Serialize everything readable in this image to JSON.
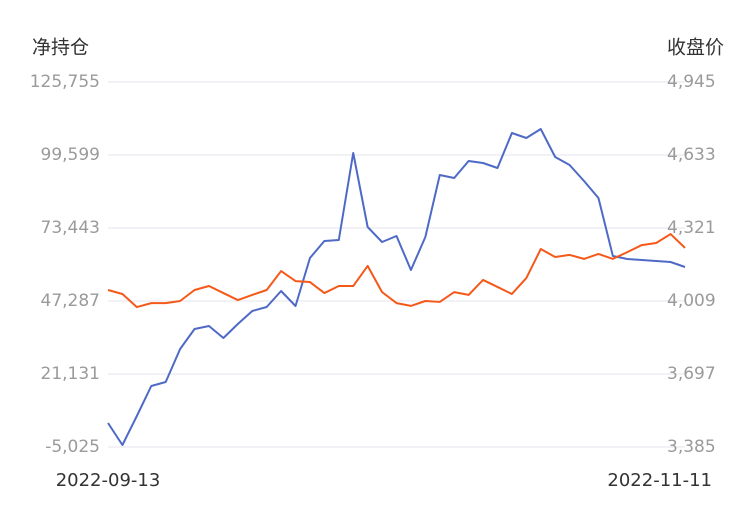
{
  "chart_data": {
    "type": "line",
    "y_label": "净持仓",
    "y2_label": "收盘价",
    "categories": [
      "2022-09-13",
      null,
      null,
      null,
      null,
      null,
      null,
      null,
      null,
      null,
      null,
      null,
      null,
      null,
      null,
      null,
      null,
      null,
      null,
      null,
      null,
      null,
      null,
      null,
      null,
      null,
      null,
      null,
      null,
      null,
      null,
      null,
      null,
      null,
      null,
      null,
      null,
      null,
      null,
      null,
      "2022-11-11"
    ],
    "series": [
      {
        "name": "净持仓",
        "color": "#4e6ac6",
        "values": [
          3575,
          -4308,
          6083,
          16832,
          18265,
          30089,
          37255,
          38330,
          34030,
          39046,
          43704,
          45137,
          50870,
          45496,
          62694,
          68785,
          69144,
          100316,
          73801,
          68427,
          70577,
          58395,
          70218,
          92433,
          91358,
          97449,
          96733,
          94941,
          107482,
          105690,
          108915,
          98882,
          96016,
          90283,
          84192,
          63411,
          62336,
          61978,
          61619,
          61261,
          59469
        ]
      },
      {
        "name": "收盘价",
        "color": "#f5591a",
        "axis": "y2",
        "values": [
          4056,
          4039,
          3983,
          4000,
          4000,
          4009,
          4056,
          4073,
          4043,
          4013,
          4035,
          4056,
          4137,
          4094,
          4090,
          4043,
          4073,
          4073,
          4159,
          4047,
          4000,
          3988,
          4009,
          4005,
          4047,
          4035,
          4099,
          4069,
          4039,
          4107,
          4231,
          4197,
          4206,
          4189,
          4210,
          4189,
          4218,
          4248,
          4257,
          4295,
          4236
        ]
      }
    ],
    "ylim": [
      -5025,
      125755
    ],
    "yticks": [
      {
        "value": -5025,
        "label": "-5,025"
      },
      {
        "value": 21131,
        "label": "21,131"
      },
      {
        "value": 47287,
        "label": "47,287"
      },
      {
        "value": 73443,
        "label": "73,443"
      },
      {
        "value": 99599,
        "label": "99,599"
      },
      {
        "value": 125755,
        "label": "125,755"
      }
    ],
    "y2lim": [
      3385,
      4945
    ],
    "y2ticks": [
      {
        "value": 3385,
        "label": "3,385"
      },
      {
        "value": 3697,
        "label": "3,697"
      },
      {
        "value": 4009,
        "label": "4,009"
      },
      {
        "value": 4321,
        "label": "4,321"
      },
      {
        "value": 4633,
        "label": "4,633"
      },
      {
        "value": 4945,
        "label": "4,945"
      }
    ],
    "grid": true
  }
}
